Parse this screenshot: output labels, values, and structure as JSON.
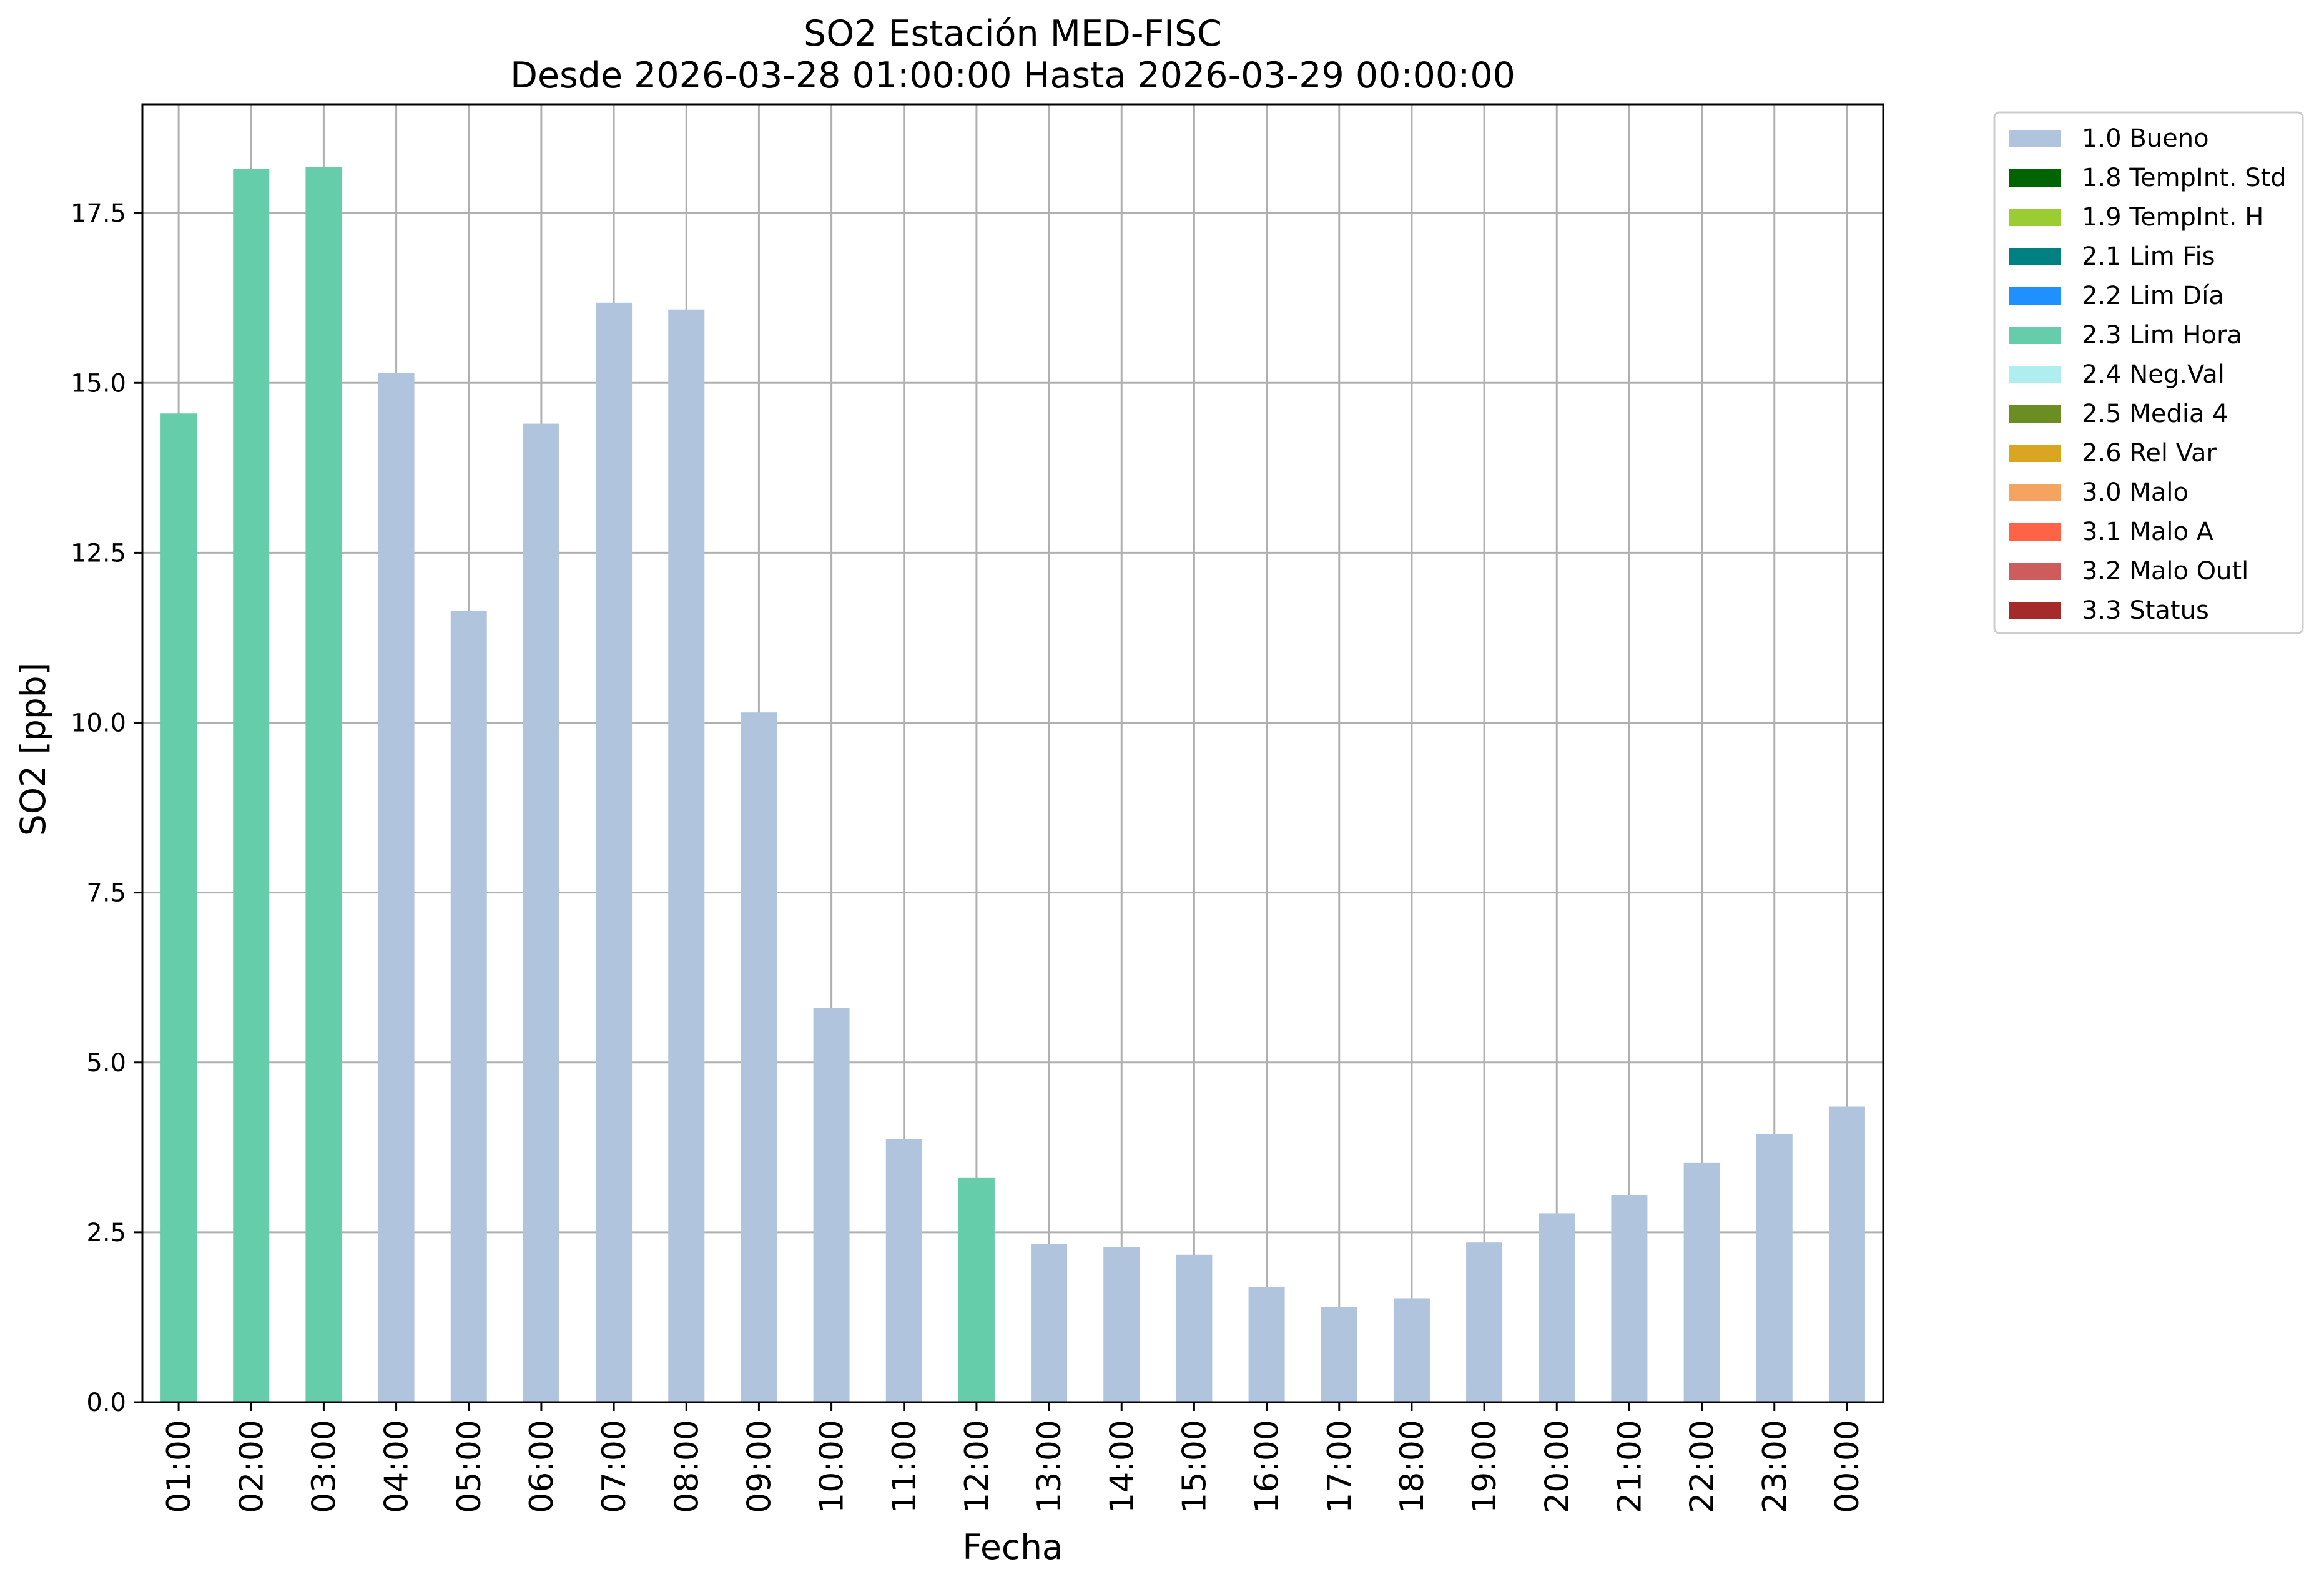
{
  "chart_data": {
    "type": "bar",
    "title": "SO2 Estación MED-FISC",
    "subtitle": "Desde 2026-03-28 01:00:00 Hasta 2026-03-29 00:00:00",
    "xlabel": "Fecha",
    "ylabel": "SO2 [ppb]",
    "ylim": [
      0,
      19.1
    ],
    "yticks": [
      "0.0",
      "2.5",
      "5.0",
      "7.5",
      "10.0",
      "12.5",
      "15.0",
      "17.5"
    ],
    "grid": true,
    "legend_position": "outside-top-right",
    "categories": [
      "01:00",
      "02:00",
      "03:00",
      "04:00",
      "05:00",
      "06:00",
      "07:00",
      "08:00",
      "09:00",
      "10:00",
      "11:00",
      "12:00",
      "13:00",
      "14:00",
      "15:00",
      "16:00",
      "17:00",
      "18:00",
      "19:00",
      "20:00",
      "21:00",
      "22:00",
      "23:00",
      "00:00"
    ],
    "values": [
      14.55,
      18.15,
      18.18,
      15.15,
      11.65,
      14.4,
      16.18,
      16.08,
      10.15,
      5.8,
      3.87,
      3.3,
      2.33,
      2.28,
      2.17,
      1.7,
      1.4,
      1.53,
      2.35,
      2.78,
      3.05,
      3.52,
      3.95,
      4.35
    ],
    "flags": [
      "2.3 Lim Hora",
      "2.3 Lim Hora",
      "2.3 Lim Hora",
      "1.0 Bueno",
      "1.0 Bueno",
      "1.0 Bueno",
      "1.0 Bueno",
      "1.0 Bueno",
      "1.0 Bueno",
      "1.0 Bueno",
      "1.0 Bueno",
      "2.3 Lim Hora",
      "1.0 Bueno",
      "1.0 Bueno",
      "1.0 Bueno",
      "1.0 Bueno",
      "1.0 Bueno",
      "1.0 Bueno",
      "1.0 Bueno",
      "1.0 Bueno",
      "1.0 Bueno",
      "1.0 Bueno",
      "1.0 Bueno",
      "1.0 Bueno"
    ],
    "legend": [
      {
        "label": "1.0 Bueno",
        "color": "#b0c4de"
      },
      {
        "label": "1.8 TempInt. Std",
        "color": "#006400"
      },
      {
        "label": "1.9 TempInt. H",
        "color": "#9acd32"
      },
      {
        "label": "2.1 Lim Fis",
        "color": "#008080"
      },
      {
        "label": "2.2 Lim Día",
        "color": "#1e90ff"
      },
      {
        "label": "2.3 Lim Hora",
        "color": "#66cdaa"
      },
      {
        "label": "2.4 Neg.Val",
        "color": "#afeeee"
      },
      {
        "label": "2.5 Media 4",
        "color": "#6b8e23"
      },
      {
        "label": "2.6 Rel Var",
        "color": "#daa520"
      },
      {
        "label": "3.0 Malo",
        "color": "#f4a460"
      },
      {
        "label": "3.1 Malo A",
        "color": "#ff6347"
      },
      {
        "label": "3.2 Malo Outl",
        "color": "#cd5c5c"
      },
      {
        "label": "3.3 Status",
        "color": "#a52a2a"
      }
    ]
  }
}
